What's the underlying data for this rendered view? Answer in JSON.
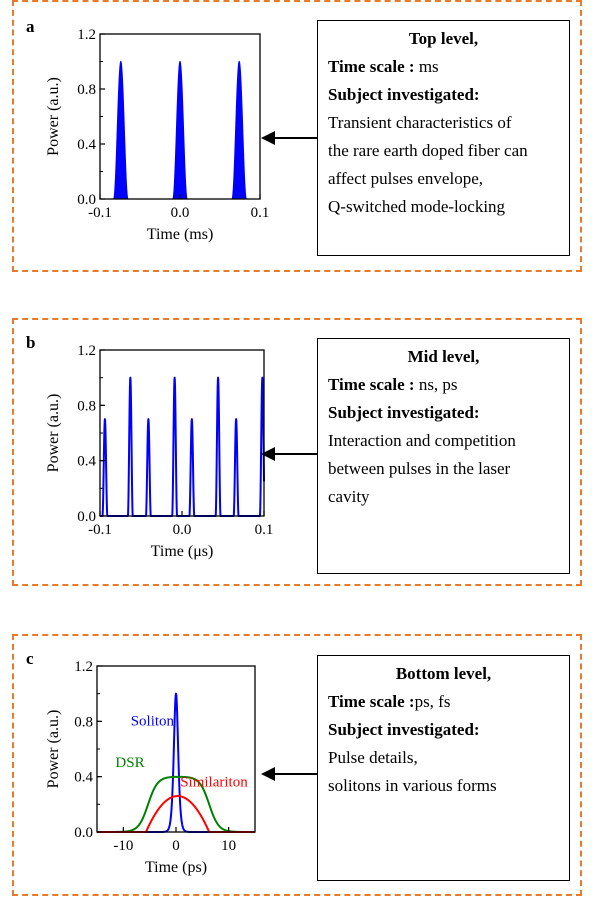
{
  "colors": {
    "border": "#e87b2a",
    "blue": "#0000ff",
    "red": "#ff0000",
    "green": "#008000",
    "black": "#000000"
  },
  "panels": [
    {
      "letter": "a",
      "box": {
        "heading": "Top level,",
        "time_scale_label": "Time scale :",
        "time_scale_value": " ms",
        "subject_label": "Subject investigated:",
        "lines": [
          "Transient characteristics of",
          "the rare earth doped fiber can",
          "affect pulses envelope,",
          "Q-switched mode-locking"
        ]
      }
    },
    {
      "letter": "b",
      "box": {
        "heading": "Mid level,",
        "time_scale_label": "Time scale :",
        "time_scale_value": " ns, ps",
        "subject_label": "Subject investigated:",
        "lines": [
          "Interaction and competition",
          "between pulses in the laser",
          "cavity"
        ]
      }
    },
    {
      "letter": "c",
      "box": {
        "heading": "Bottom level,",
        "time_scale_label": "Time scale :",
        "time_scale_value": "ps, fs",
        "subject_label": "Subject investigated:",
        "lines": [
          "Pulse details,",
          "solitons in various forms"
        ]
      }
    }
  ],
  "chart_data": [
    {
      "type": "line",
      "panel": "a",
      "xlabel": "Time (ms)",
      "ylabel": "Power (a.u.)",
      "xlim": [
        -0.1,
        0.1
      ],
      "ylim": [
        0.0,
        1.2
      ],
      "xticks": [
        -0.1,
        0.0,
        0.1
      ],
      "xtick_labels": [
        "-0.1",
        "0.0",
        "0.1"
      ],
      "yticks": [
        0.0,
        0.4,
        0.8,
        1.2
      ],
      "ytick_labels": [
        "0.0",
        "0.4",
        "0.8",
        "1.2"
      ],
      "series": [
        {
          "color": "#0000ff",
          "filled": true,
          "pulses": [
            {
              "center": -0.074,
              "peak": 1.0,
              "halfwidth": 0.009
            },
            {
              "center": 0.0,
              "peak": 1.0,
              "halfwidth": 0.009
            },
            {
              "center": 0.074,
              "peak": 1.0,
              "halfwidth": 0.009
            }
          ]
        }
      ]
    },
    {
      "type": "line",
      "panel": "b",
      "xlabel": "Time (μs)",
      "ylabel": "Power (a.u.)",
      "xlim": [
        -0.1,
        0.1
      ],
      "ylim": [
        0.0,
        1.2
      ],
      "xticks": [
        -0.1,
        0.0,
        0.1
      ],
      "xtick_labels": [
        "-0.1",
        "0.0",
        "0.1"
      ],
      "yticks": [
        0.0,
        0.4,
        0.8,
        1.2
      ],
      "ytick_labels": [
        "0.0",
        "0.4",
        "0.8",
        "1.2"
      ],
      "series": [
        {
          "color": "#0000ff",
          "filled": false,
          "pulses": [
            {
              "center": -0.094,
              "peak": 0.7,
              "halfwidth": 0.003
            },
            {
              "center": -0.063,
              "peak": 1.0,
              "halfwidth": 0.003
            },
            {
              "center": -0.041,
              "peak": 0.7,
              "halfwidth": 0.003
            },
            {
              "center": -0.009,
              "peak": 1.0,
              "halfwidth": 0.003
            },
            {
              "center": 0.012,
              "peak": 0.7,
              "halfwidth": 0.003
            },
            {
              "center": 0.044,
              "peak": 1.0,
              "halfwidth": 0.003
            },
            {
              "center": 0.066,
              "peak": 0.7,
              "halfwidth": 0.003
            },
            {
              "center": 0.098,
              "peak": 1.0,
              "halfwidth": 0.003
            }
          ]
        }
      ]
    },
    {
      "type": "line",
      "panel": "c",
      "xlabel": "Time (ps)",
      "ylabel": "Power (a.u.)",
      "xlim": [
        -15,
        15
      ],
      "ylim": [
        0.0,
        1.2
      ],
      "xticks": [
        -10,
        0,
        10
      ],
      "xtick_labels": [
        "-10",
        "0",
        "10"
      ],
      "yticks": [
        0.0,
        0.4,
        0.8,
        1.2
      ],
      "ytick_labels": [
        "0.0",
        "0.4",
        "0.8",
        "1.2"
      ],
      "series": [
        {
          "name": "Soliton",
          "color": "#0000ff",
          "shape": "sech2",
          "peak": 1.0,
          "center": 0,
          "width": 0.55,
          "label_at": [
            -8.6,
            0.77
          ]
        },
        {
          "name": "DSR",
          "color": "#008000",
          "shape": "flat-top",
          "peak": 0.4,
          "center": 0.5,
          "halfwidth": 5.8,
          "edge": 0.9,
          "label_at": [
            -11.5,
            0.47
          ]
        },
        {
          "name": "Similariton",
          "color": "#ff0000",
          "shape": "parabolic",
          "peak": 0.26,
          "center": 0.3,
          "halfwidth": 6.0,
          "label_at": [
            0.8,
            0.33
          ]
        }
      ]
    }
  ]
}
